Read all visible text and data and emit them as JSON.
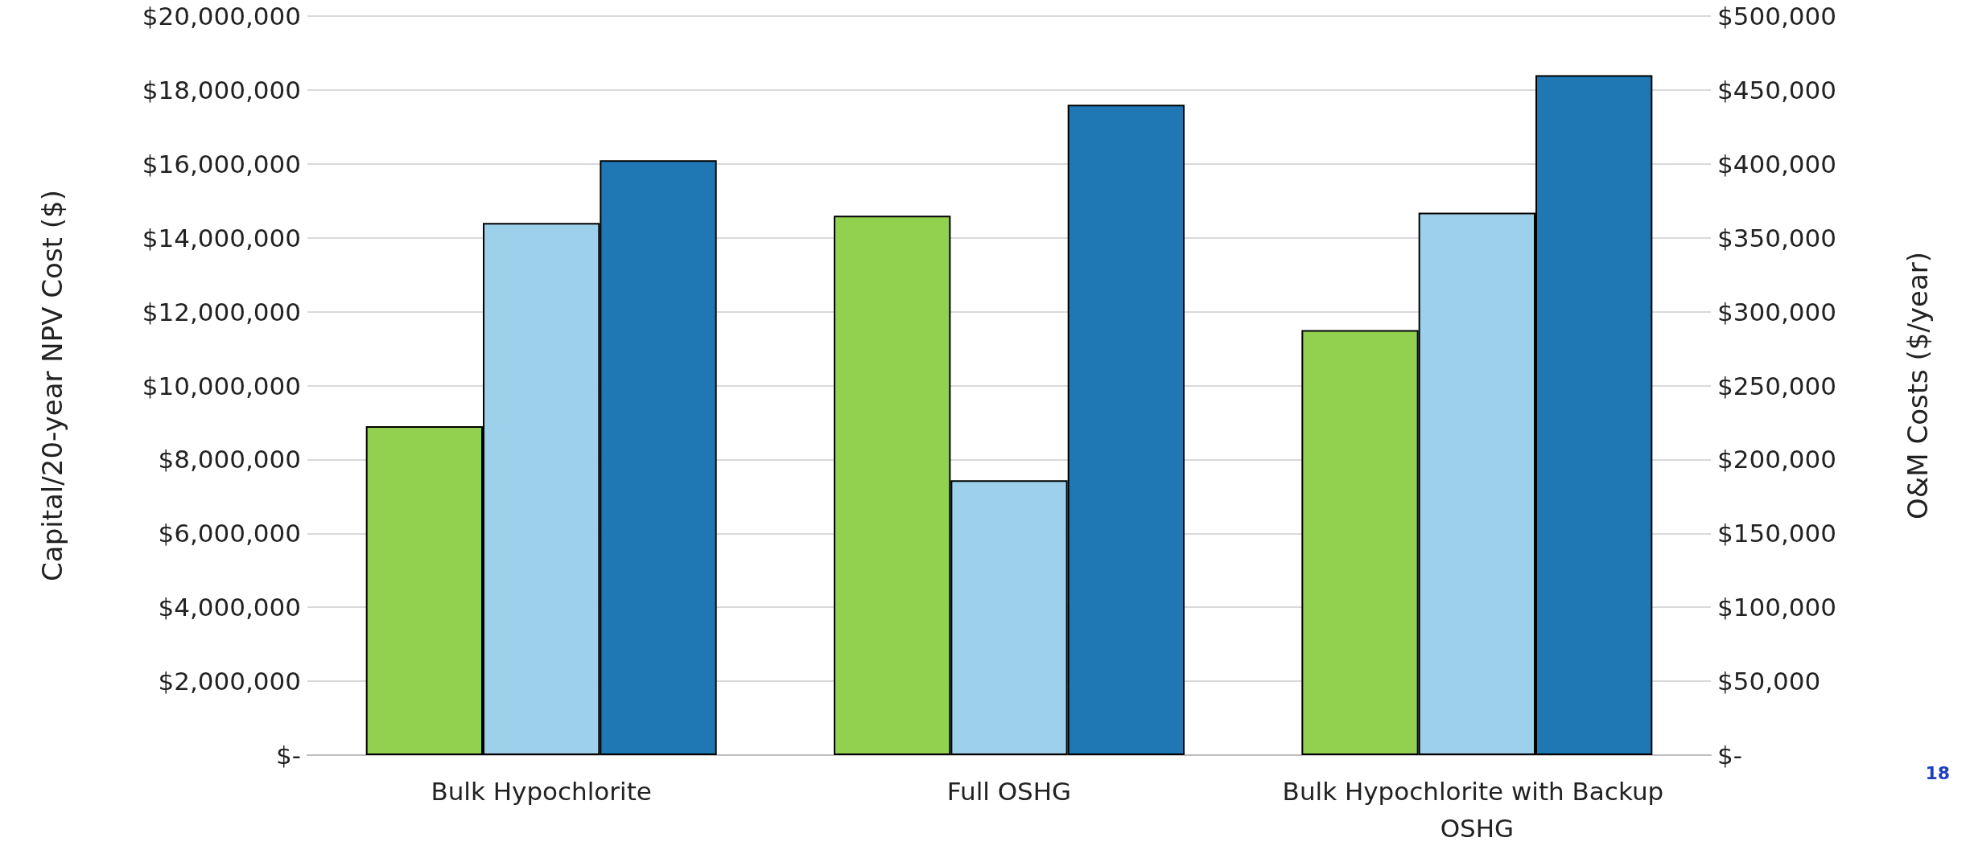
{
  "chart_data": {
    "type": "bar",
    "categories": [
      "Bulk Hypochlorite",
      "Full OSHG",
      "Bulk Hypochlorite with Backup OSHG"
    ],
    "series": [
      {
        "color": "#92d050",
        "values": [
          8900000,
          14600000,
          11500000
        ]
      },
      {
        "color": "#9dd0ea",
        "axis": "y2",
        "values": [
          360000,
          186000,
          367000
        ]
      },
      {
        "color": "#1f77b4",
        "values": [
          16100000,
          17600000,
          18400000
        ]
      }
    ],
    "ylabel": "Capital/20-year NPV Cost ($)",
    "y2label": "O&M Costs ($/year)",
    "ylim": [
      0,
      20000000
    ],
    "yticks": [
      {
        "value": 0,
        "label": "$-"
      },
      {
        "value": 2000000,
        "label": "$2,000,000"
      },
      {
        "value": 4000000,
        "label": "$4,000,000"
      },
      {
        "value": 6000000,
        "label": "$6,000,000"
      },
      {
        "value": 8000000,
        "label": "$8,000,000"
      },
      {
        "value": 10000000,
        "label": "$10,000,000"
      },
      {
        "value": 12000000,
        "label": "$12,000,000"
      },
      {
        "value": 14000000,
        "label": "$14,000,000"
      },
      {
        "value": 16000000,
        "label": "$16,000,000"
      },
      {
        "value": 18000000,
        "label": "$18,000,000"
      },
      {
        "value": 20000000,
        "label": "$20,000,000"
      }
    ],
    "y2lim": [
      0,
      500000
    ],
    "y2ticks": [
      {
        "value": 0,
        "label": "$-"
      },
      {
        "value": 50000,
        "label": "$50,000"
      },
      {
        "value": 100000,
        "label": "$100,000"
      },
      {
        "value": 150000,
        "label": "$150,000"
      },
      {
        "value": 200000,
        "label": "$200,000"
      },
      {
        "value": 250000,
        "label": "$250,000"
      },
      {
        "value": 300000,
        "label": "$300,000"
      },
      {
        "value": 350000,
        "label": "$350,000"
      },
      {
        "value": 400000,
        "label": "$400,000"
      },
      {
        "value": 450000,
        "label": "$450,000"
      },
      {
        "value": 500000,
        "label": "$500,000"
      }
    ],
    "grid": "y",
    "annotations": [
      "18"
    ]
  }
}
